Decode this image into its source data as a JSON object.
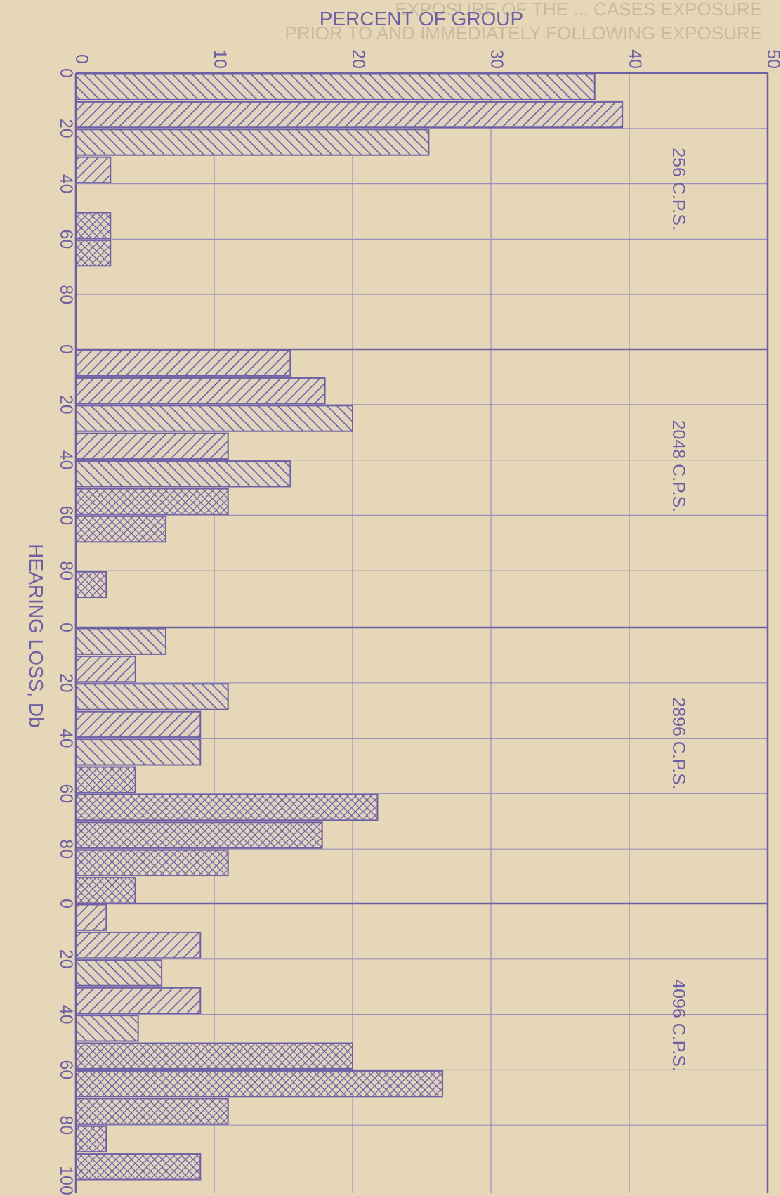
{
  "chart_data": {
    "type": "bar",
    "orientation": "horizontal",
    "title": "",
    "xlabel": "PERCENT OF GROUP",
    "ylabel": "HEARING LOSS, Db",
    "xlim": [
      0,
      50
    ],
    "x_ticks": [
      "0",
      "10",
      "20",
      "30",
      "40",
      "50"
    ],
    "y_ticks": [
      "0",
      "20",
      "40",
      "60",
      "80",
      "100"
    ],
    "grid": true,
    "header_text": [
      "EXPOSURE OF THE ... CASES EXPOSURE",
      "PRIOR TO AND IMMEDIATELY FOLLOWING EXPOSURE"
    ],
    "panels": [
      {
        "name": "256 C.P.S.",
        "y_ticks": [
          "0",
          "20",
          "40",
          "60",
          "80"
        ],
        "bars": [
          {
            "from": 0,
            "to": 10,
            "value": 37.5,
            "pattern": "backslash"
          },
          {
            "from": 10,
            "to": 20,
            "value": 39.5,
            "pattern": "slash"
          },
          {
            "from": 20,
            "to": 30,
            "value": 25.5,
            "pattern": "backslash"
          },
          {
            "from": 30,
            "to": 40,
            "value": 2.5,
            "pattern": "slash"
          },
          {
            "from": 50,
            "to": 60,
            "value": 2.5,
            "pattern": "cross"
          },
          {
            "from": 60,
            "to": 70,
            "value": 2.5,
            "pattern": "cross"
          }
        ]
      },
      {
        "name": "2048 C.P.S.",
        "y_ticks": [
          "0",
          "20",
          "40",
          "60",
          "80"
        ],
        "bars": [
          {
            "from": 0,
            "to": 10,
            "value": 15.5,
            "pattern": "slash"
          },
          {
            "from": 10,
            "to": 20,
            "value": 18,
            "pattern": "slash"
          },
          {
            "from": 20,
            "to": 30,
            "value": 20,
            "pattern": "backslash"
          },
          {
            "from": 30,
            "to": 40,
            "value": 11,
            "pattern": "slash"
          },
          {
            "from": 40,
            "to": 50,
            "value": 15.5,
            "pattern": "backslash"
          },
          {
            "from": 50,
            "to": 60,
            "value": 11,
            "pattern": "cross"
          },
          {
            "from": 60,
            "to": 70,
            "value": 6.5,
            "pattern": "cross"
          },
          {
            "from": 80,
            "to": 90,
            "value": 2.2,
            "pattern": "cross"
          }
        ]
      },
      {
        "name": "2896 C.P.S.",
        "y_ticks": [
          "0",
          "20",
          "40",
          "60",
          "80"
        ],
        "bars": [
          {
            "from": 0,
            "to": 10,
            "value": 6.5,
            "pattern": "backslash"
          },
          {
            "from": 10,
            "to": 20,
            "value": 4.3,
            "pattern": "slash"
          },
          {
            "from": 20,
            "to": 30,
            "value": 11,
            "pattern": "backslash"
          },
          {
            "from": 30,
            "to": 40,
            "value": 9,
            "pattern": "slash"
          },
          {
            "from": 40,
            "to": 50,
            "value": 9,
            "pattern": "backslash"
          },
          {
            "from": 50,
            "to": 60,
            "value": 4.3,
            "pattern": "cross"
          },
          {
            "from": 60,
            "to": 70,
            "value": 21.8,
            "pattern": "cross"
          },
          {
            "from": 70,
            "to": 80,
            "value": 17.8,
            "pattern": "cross"
          },
          {
            "from": 80,
            "to": 90,
            "value": 11,
            "pattern": "cross"
          },
          {
            "from": 90,
            "to": 100,
            "value": 4.3,
            "pattern": "cross"
          }
        ]
      },
      {
        "name": "4096 C.P.S.",
        "y_ticks": [
          "0",
          "20",
          "40",
          "60",
          "80",
          "100"
        ],
        "bars": [
          {
            "from": 0,
            "to": 10,
            "value": 2.2,
            "pattern": "slash"
          },
          {
            "from": 10,
            "to": 20,
            "value": 9,
            "pattern": "slash"
          },
          {
            "from": 20,
            "to": 30,
            "value": 6.2,
            "pattern": "backslash"
          },
          {
            "from": 30,
            "to": 40,
            "value": 9,
            "pattern": "slash"
          },
          {
            "from": 40,
            "to": 50,
            "value": 4.5,
            "pattern": "backslash"
          },
          {
            "from": 50,
            "to": 60,
            "value": 20,
            "pattern": "cross"
          },
          {
            "from": 60,
            "to": 70,
            "value": 26.5,
            "pattern": "cross"
          },
          {
            "from": 70,
            "to": 80,
            "value": 11,
            "pattern": "cross"
          },
          {
            "from": 80,
            "to": 90,
            "value": 2.2,
            "pattern": "cross"
          },
          {
            "from": 90,
            "to": 100,
            "value": 9,
            "pattern": "cross"
          }
        ]
      }
    ]
  },
  "colors": {
    "ink": "#6e60a4",
    "paper": "#e6d7b8",
    "grid": "#9c90bd"
  }
}
